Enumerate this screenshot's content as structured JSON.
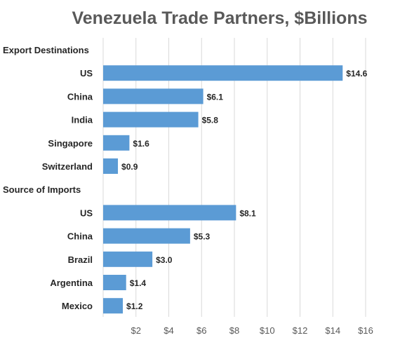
{
  "chart_data": {
    "type": "bar",
    "orientation": "horizontal",
    "title": "Venezuela Trade Partners, $Billions",
    "xlabel": "",
    "ylabel": "",
    "xlim": [
      0,
      16
    ],
    "xticks": [
      2,
      4,
      6,
      8,
      10,
      12,
      14,
      16
    ],
    "tick_prefix": "$",
    "value_prefix": "$",
    "grid": true,
    "bar_color": "#5b9bd5",
    "groups": [
      {
        "name": "Export Destinations",
        "categories": [
          "US",
          "China",
          "India",
          "Singapore",
          "Switzerland"
        ],
        "values": [
          14.6,
          6.1,
          5.8,
          1.6,
          0.9
        ]
      },
      {
        "name": "Source of Imports",
        "categories": [
          "US",
          "China",
          "Brazil",
          "Argentina",
          "Mexico"
        ],
        "values": [
          8.1,
          5.3,
          3.0,
          1.4,
          1.2
        ]
      }
    ]
  }
}
